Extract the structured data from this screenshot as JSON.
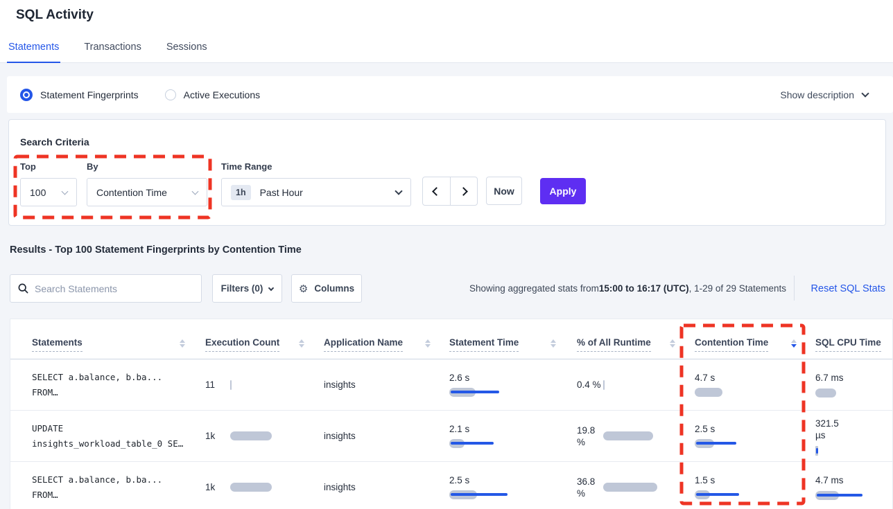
{
  "title": "SQL Activity",
  "tabs": {
    "statements": "Statements",
    "transactions": "Transactions",
    "sessions": "Sessions"
  },
  "toggle": {
    "fingerprints": "Statement Fingerprints",
    "active_executions": "Active Executions",
    "show_description": "Show description"
  },
  "criteria": {
    "heading": "Search Criteria",
    "top_label": "Top",
    "top_value": "100",
    "by_label": "By",
    "by_value": "Contention Time",
    "time_label": "Time Range",
    "time_badge": "1h",
    "time_value": "Past Hour",
    "now": "Now",
    "apply": "Apply"
  },
  "results": {
    "heading": "Results - Top 100 Statement Fingerprints by Contention Time",
    "search_placeholder": "Search Statements",
    "filters": "Filters (0)",
    "columns": "Columns",
    "stats_prefix": "Showing aggregated stats from ",
    "stats_bold": "15:00 to 16:17 (UTC)",
    "stats_suffix": ", 1-29 of 29 Statements",
    "reset": "Reset SQL Stats"
  },
  "table": {
    "headers": [
      "Statements",
      "Execution Count",
      "Application Name",
      "Statement Time",
      "% of All Runtime",
      "Contention Time",
      "SQL CPU Time"
    ],
    "sort": {
      "column": "Contention Time",
      "direction": "desc"
    },
    "rows": [
      {
        "statement": [
          "SELECT a.balance, b.ba...",
          "FROM…"
        ],
        "execution_count": "11",
        "application_name": "insights",
        "statement_time": "2.6 s",
        "pct_of_all_runtime": "0.4 %",
        "contention_time": "4.7 s",
        "sql_cpu_time": "6.7 ms",
        "bars": {
          "execution_count": [
            2,
            0
          ],
          "statement_time": [
            38,
            70
          ],
          "pct_of_all_runtime": [
            2,
            0
          ],
          "contention_time": [
            40,
            0
          ],
          "sql_cpu_time": [
            30,
            0
          ]
        }
      },
      {
        "statement": [
          "UPDATE",
          "insights_workload_table_0 SE…"
        ],
        "execution_count": "1k",
        "application_name": "insights",
        "statement_time": "2.1 s",
        "pct_of_all_runtime": "19.8 %",
        "contention_time": "2.5 s",
        "sql_cpu_time": "321.5 µs",
        "bars": {
          "execution_count": [
            60,
            0
          ],
          "statement_time": [
            22,
            62
          ],
          "pct_of_all_runtime": [
            72,
            0
          ],
          "contention_time": [
            28,
            58
          ],
          "sql_cpu_time": [
            4,
            3
          ]
        }
      },
      {
        "statement": [
          "SELECT a.balance, b.ba...",
          "FROM…"
        ],
        "execution_count": "1k",
        "application_name": "insights",
        "statement_time": "2.5 s",
        "pct_of_all_runtime": "36.8 %",
        "contention_time": "1.5 s",
        "sql_cpu_time": "4.7 ms",
        "bars": {
          "execution_count": [
            60,
            0
          ],
          "statement_time": [
            40,
            82
          ],
          "pct_of_all_runtime": [
            78,
            0
          ],
          "contention_time": [
            22,
            62
          ],
          "sql_cpu_time": [
            34,
            66
          ]
        }
      }
    ]
  },
  "annotations": {
    "color": "#ee3424",
    "regions": [
      "top-by-criteria",
      "contention-time-column"
    ]
  },
  "colors": {
    "accent_blue": "#2456e8",
    "apply_purple": "#5e2ef2",
    "annotation_red": "#ee3424",
    "bar_gray": "#bfc7d7",
    "bar_blue": "#2458e6"
  }
}
